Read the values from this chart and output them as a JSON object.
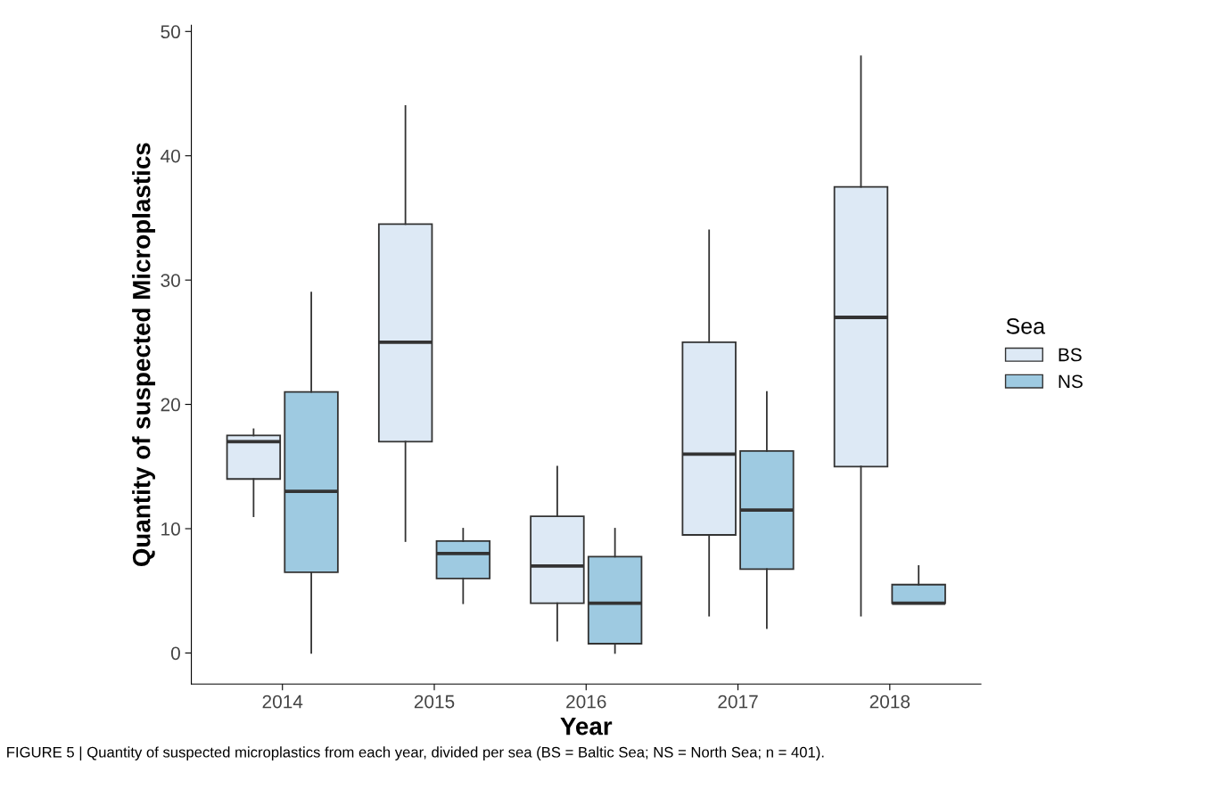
{
  "chart_data": {
    "type": "box",
    "xlabel": "Year",
    "ylabel": "Quantity of suspected Microplastics",
    "legend_title": "Sea",
    "legend": "right",
    "categories": [
      "2014",
      "2015",
      "2016",
      "2017",
      "2018"
    ],
    "ylim": [
      -2.5,
      50.5
    ],
    "yticks": [
      0,
      10,
      20,
      30,
      40,
      50
    ],
    "grid": false,
    "series": [
      {
        "name": "BS",
        "color": "#dde9f5",
        "boxes": [
          {
            "low": 11,
            "q1": 14,
            "median": 17,
            "q3": 17.5,
            "high": 18
          },
          {
            "low": 9,
            "q1": 17,
            "median": 25,
            "q3": 34.5,
            "high": 44
          },
          {
            "low": 1,
            "q1": 4,
            "median": 7,
            "q3": 11,
            "high": 15
          },
          {
            "low": 3,
            "q1": 9.5,
            "median": 16,
            "q3": 25,
            "high": 34
          },
          {
            "low": 3,
            "q1": 15,
            "median": 27,
            "q3": 37.5,
            "high": 48
          }
        ]
      },
      {
        "name": "NS",
        "color": "#9ecae1",
        "boxes": [
          {
            "low": 0,
            "q1": 6.5,
            "median": 13,
            "q3": 21,
            "high": 29
          },
          {
            "low": 4,
            "q1": 6,
            "median": 8,
            "q3": 9,
            "high": 10
          },
          {
            "low": 0,
            "q1": 0.75,
            "median": 4,
            "q3": 7.75,
            "high": 10
          },
          {
            "low": 2,
            "q1": 6.75,
            "median": 11.5,
            "q3": 16.25,
            "high": 21
          },
          {
            "low": 4,
            "q1": 4,
            "median": 4,
            "q3": 5.5,
            "high": 7
          }
        ]
      }
    ],
    "annotations": [
      "FIGURE 5 | Quantity of suspected microplastics from each year, divided per sea (BS = Baltic Sea; NS = North Sea; n = 401)."
    ]
  }
}
